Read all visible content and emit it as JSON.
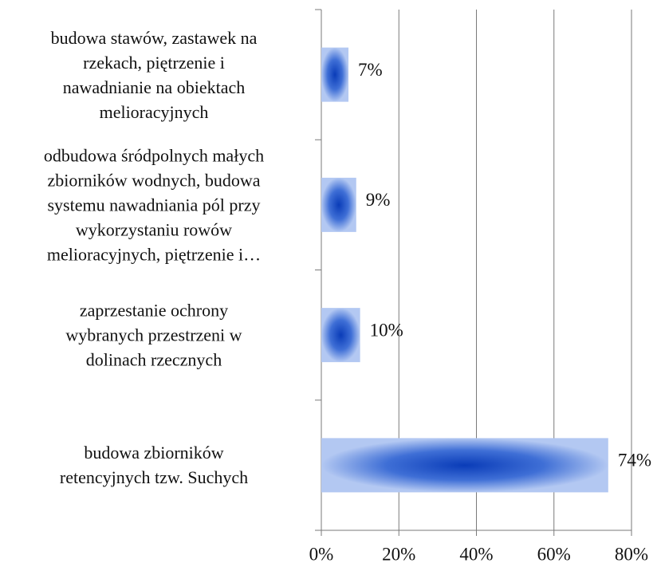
{
  "chart_data": {
    "type": "barh",
    "categories": [
      "budowa stawów, zastawek na\nrzekach, piętrzenie i\nnawadnianie na  obiektach\nmelioracyjnych",
      "odbudowa śródpolnych małych\nzbiorników wodnych, budowa\nsystemu nawadniania pól przy\nwykorzystaniu rowów\nmelioracyjnych, piętrzenie i…",
      "zaprzestanie ochrony\nwybranych przestrzeni w\ndolinach rzecznych",
      "budowa zbiorników\nretencyjnych tzw. Suchych"
    ],
    "values": [
      7,
      9,
      10,
      74
    ],
    "value_labels": [
      "7%",
      "9%",
      "10%",
      "74%"
    ],
    "color": "#0b3fbf",
    "xlim": [
      0,
      80
    ],
    "xticks": [
      {
        "value": 0,
        "label": "0%"
      },
      {
        "value": 20,
        "label": "20%"
      },
      {
        "value": 40,
        "label": "40%"
      },
      {
        "value": 60,
        "label": "60%"
      },
      {
        "value": 80,
        "label": "80%"
      }
    ],
    "grid": true
  }
}
